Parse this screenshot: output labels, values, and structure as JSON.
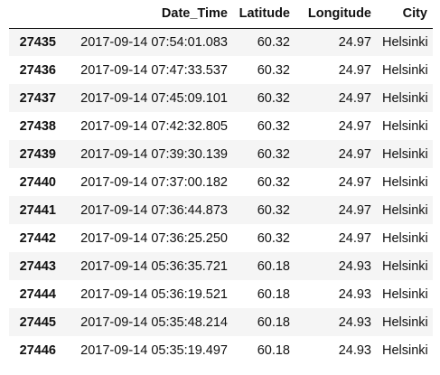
{
  "dataframe": {
    "columns": [
      "",
      "Date_Time",
      "Latitude",
      "Longitude",
      "City"
    ],
    "rows": [
      {
        "index": "27435",
        "date_time": "2017-09-14 07:54:01.083",
        "latitude": "60.32",
        "longitude": "24.97",
        "city": "Helsinki"
      },
      {
        "index": "27436",
        "date_time": "2017-09-14 07:47:33.537",
        "latitude": "60.32",
        "longitude": "24.97",
        "city": "Helsinki"
      },
      {
        "index": "27437",
        "date_time": "2017-09-14 07:45:09.101",
        "latitude": "60.32",
        "longitude": "24.97",
        "city": "Helsinki"
      },
      {
        "index": "27438",
        "date_time": "2017-09-14 07:42:32.805",
        "latitude": "60.32",
        "longitude": "24.97",
        "city": "Helsinki"
      },
      {
        "index": "27439",
        "date_time": "2017-09-14 07:39:30.139",
        "latitude": "60.32",
        "longitude": "24.97",
        "city": "Helsinki"
      },
      {
        "index": "27440",
        "date_time": "2017-09-14 07:37:00.182",
        "latitude": "60.32",
        "longitude": "24.97",
        "city": "Helsinki"
      },
      {
        "index": "27441",
        "date_time": "2017-09-14 07:36:44.873",
        "latitude": "60.32",
        "longitude": "24.97",
        "city": "Helsinki"
      },
      {
        "index": "27442",
        "date_time": "2017-09-14 07:36:25.250",
        "latitude": "60.32",
        "longitude": "24.97",
        "city": "Helsinki"
      },
      {
        "index": "27443",
        "date_time": "2017-09-14 05:36:35.721",
        "latitude": "60.18",
        "longitude": "24.93",
        "city": "Helsinki"
      },
      {
        "index": "27444",
        "date_time": "2017-09-14 05:36:19.521",
        "latitude": "60.18",
        "longitude": "24.93",
        "city": "Helsinki"
      },
      {
        "index": "27445",
        "date_time": "2017-09-14 05:35:48.214",
        "latitude": "60.18",
        "longitude": "24.93",
        "city": "Helsinki"
      },
      {
        "index": "27446",
        "date_time": "2017-09-14 05:35:19.497",
        "latitude": "60.18",
        "longitude": "24.93",
        "city": "Helsinki"
      }
    ]
  },
  "colors": {
    "stripe": "#f5f5f5",
    "text": "#111111",
    "header_rule": "#111111"
  }
}
